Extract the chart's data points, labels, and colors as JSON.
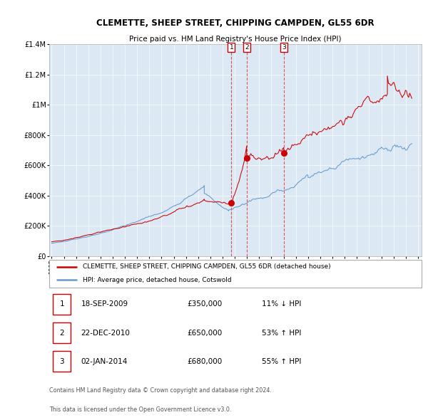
{
  "title": "CLEMETTE, SHEEP STREET, CHIPPING CAMPDEN, GL55 6DR",
  "subtitle": "Price paid vs. HM Land Registry's House Price Index (HPI)",
  "background_color": "#dce9f5",
  "red_line_color": "#cc0000",
  "blue_line_color": "#6699cc",
  "marker_color": "#cc0000",
  "vline_color": "#cc0000",
  "grid_color": "#ffffff",
  "ylim": [
    0,
    1400000
  ],
  "yticks": [
    0,
    200000,
    400000,
    600000,
    800000,
    1000000,
    1200000,
    1400000
  ],
  "ytick_labels": [
    "£0",
    "£200K",
    "£400K",
    "£600K",
    "£800K",
    "£1M",
    "£1.2M",
    "£1.4M"
  ],
  "purchases": [
    {
      "date_str": "18-SEP-2009",
      "date_num": 2009.72,
      "price": 350000,
      "label": "1"
    },
    {
      "date_str": "22-DEC-2010",
      "date_num": 2010.97,
      "price": 650000,
      "label": "2"
    },
    {
      "date_str": "02-JAN-2014",
      "date_num": 2014.01,
      "price": 680000,
      "label": "3"
    }
  ],
  "legend_line1": "CLEMETTE, SHEEP STREET, CHIPPING CAMPDEN, GL55 6DR (detached house)",
  "legend_line2": "HPI: Average price, detached house, Cotswold",
  "table_data": [
    [
      "1",
      "18-SEP-2009",
      "£350,000",
      "11% ↓ HPI"
    ],
    [
      "2",
      "22-DEC-2010",
      "£650,000",
      "53% ↑ HPI"
    ],
    [
      "3",
      "02-JAN-2014",
      "£680,000",
      "55% ↑ HPI"
    ]
  ],
  "footnote1": "Contains HM Land Registry data © Crown copyright and database right 2024.",
  "footnote2": "This data is licensed under the Open Government Licence v3.0."
}
